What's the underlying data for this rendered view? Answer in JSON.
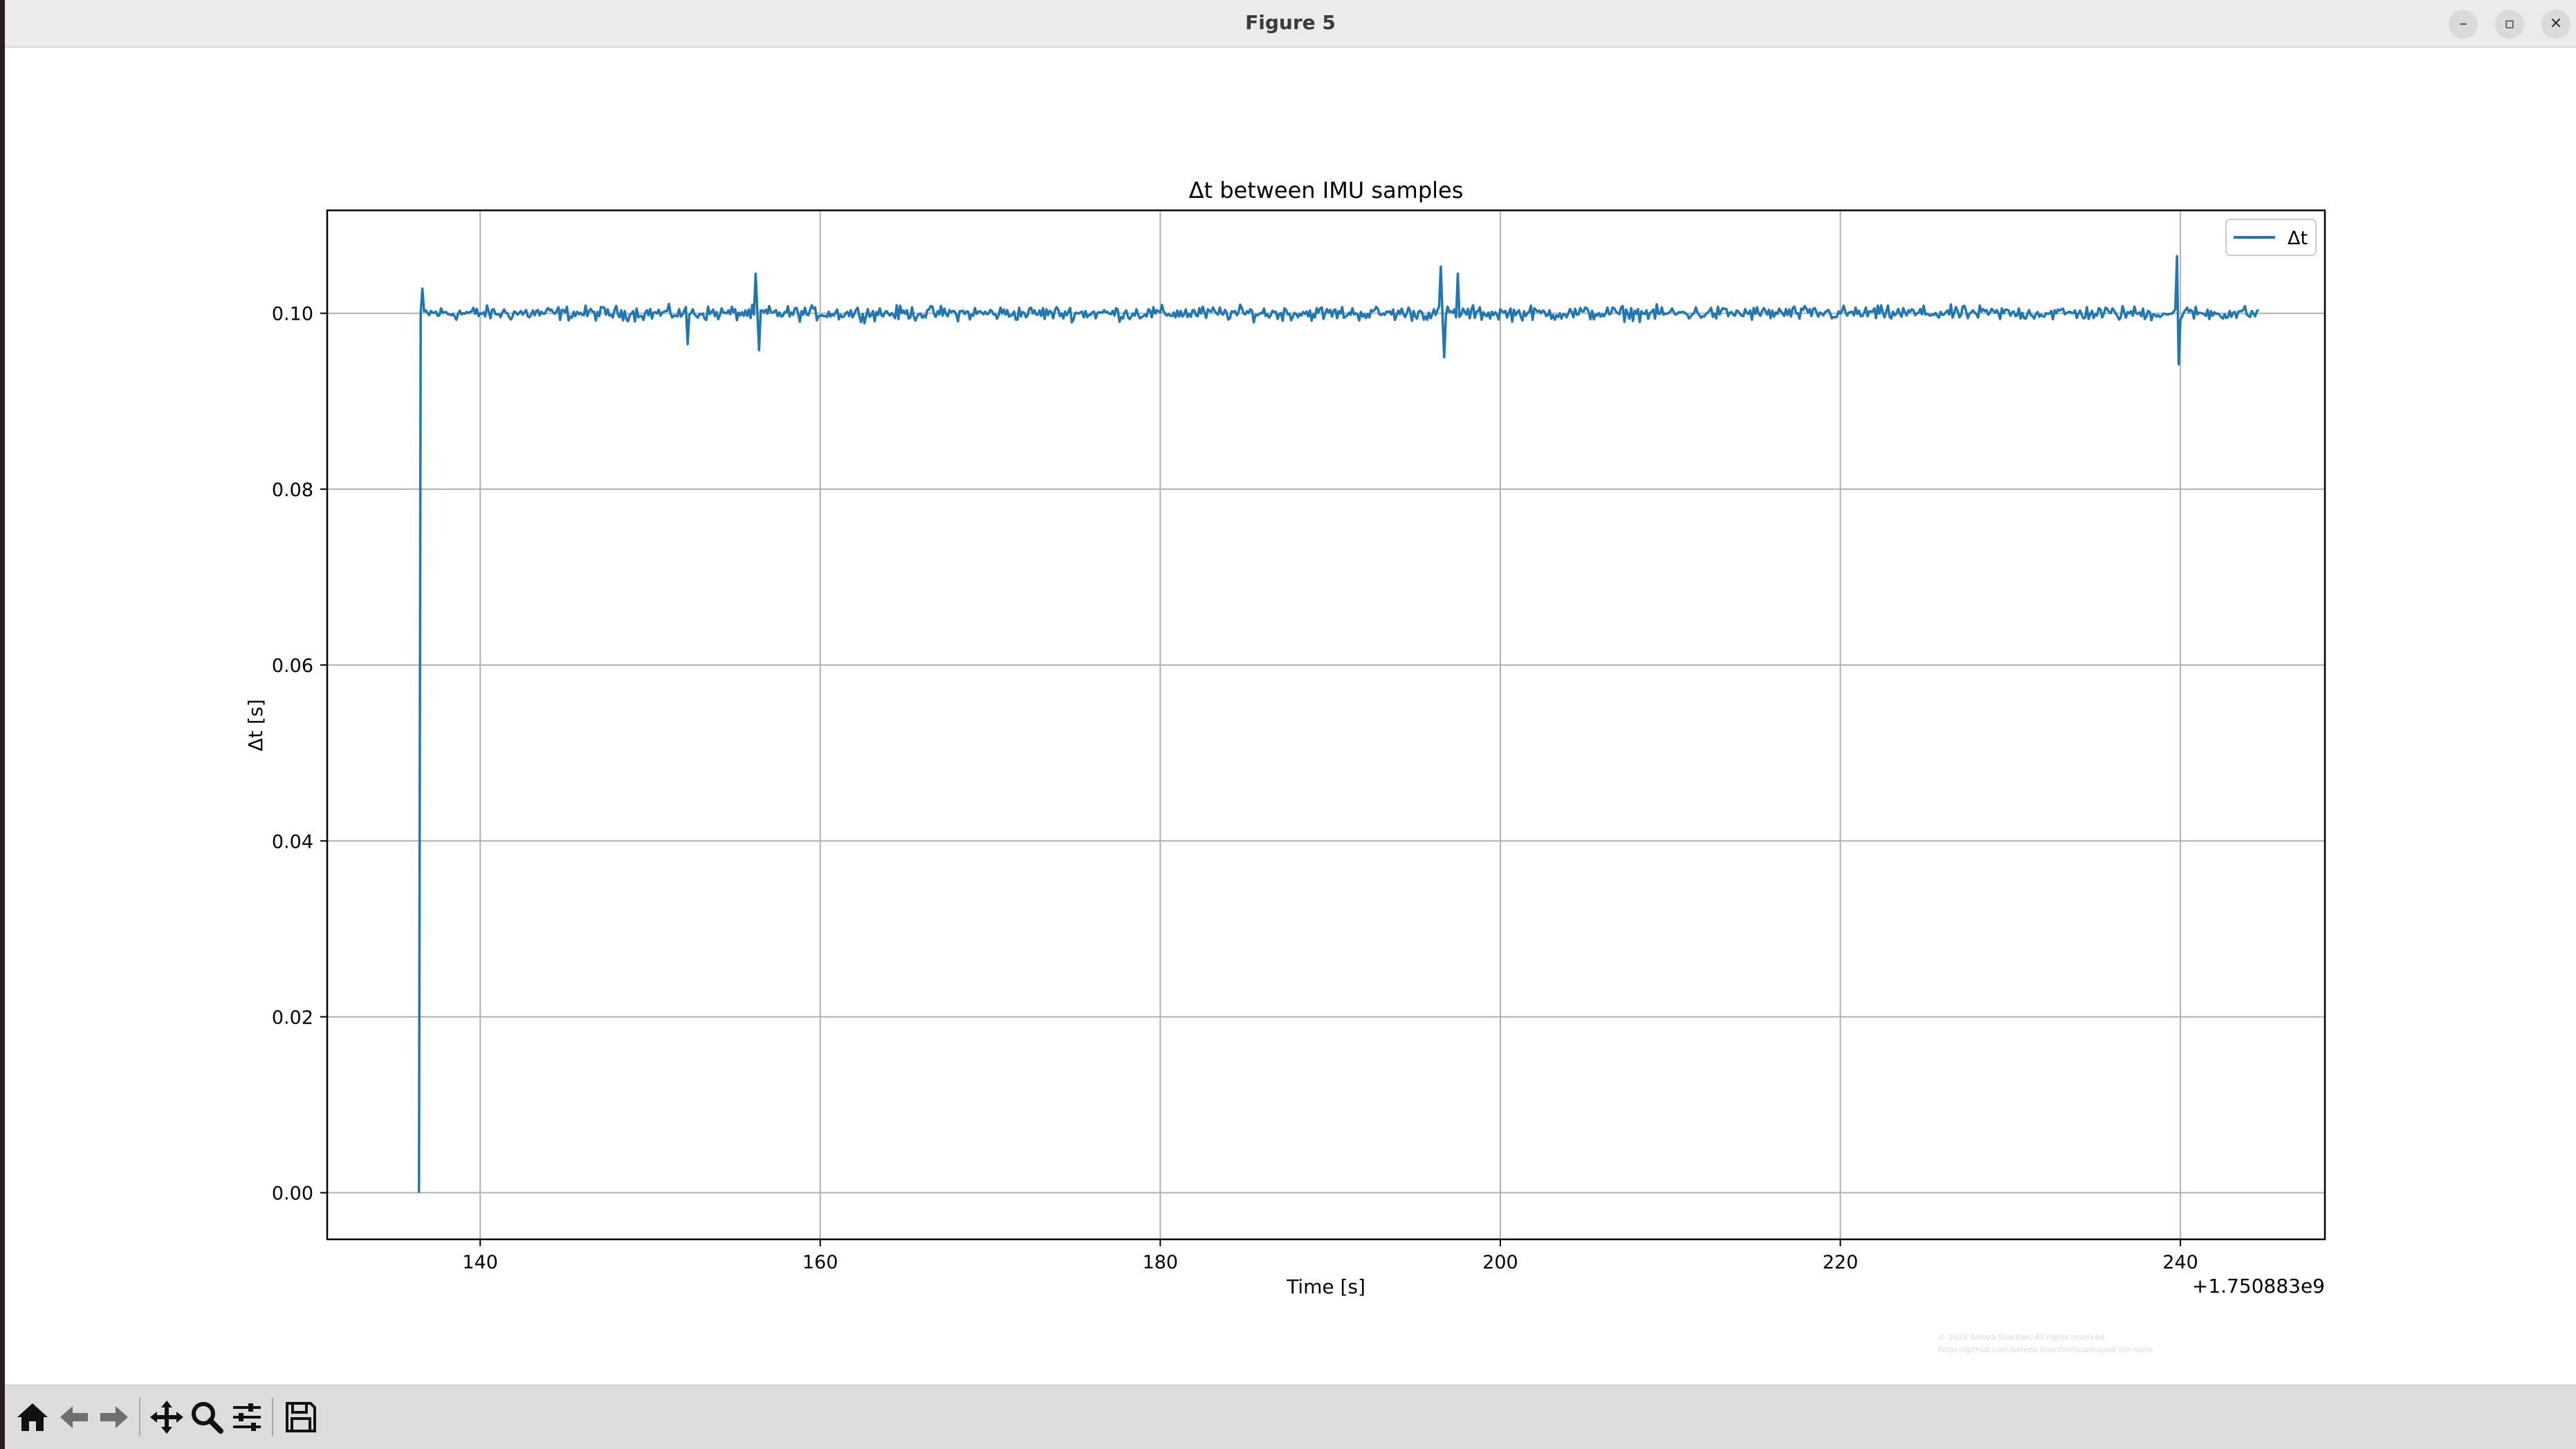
{
  "window": {
    "title": "Figure 5",
    "controls": {
      "minimize": "–",
      "maximize": "▫",
      "close": "✕"
    }
  },
  "toolbar": {
    "buttons": [
      "home-icon",
      "back-arrow-icon",
      "forward-arrow-icon",
      "pan-move-icon",
      "zoom-magnifier-icon",
      "configure-subplots-icon",
      "save-floppy-icon"
    ]
  },
  "watermark": {
    "line1": "© 2025 Alireza Sharifan. All rights reserved.",
    "line2": "https://github.com/Alireza-Sharifan/quadruped-sim-suite"
  },
  "chart_data": {
    "type": "line",
    "title": "Δt between IMU samples",
    "xlabel": "Time [s]",
    "ylabel": "Δt [s]",
    "x_offset_label": "+1.750883e9",
    "xlim": [
      131,
      248.5
    ],
    "ylim": [
      -0.0053,
      0.1117
    ],
    "xticks": [
      140,
      160,
      180,
      200,
      220,
      240
    ],
    "yticks": [
      0.0,
      0.02,
      0.04,
      0.06,
      0.08,
      0.1
    ],
    "ytick_labels": [
      "0.00",
      "0.02",
      "0.04",
      "0.06",
      "0.08",
      "0.10"
    ],
    "grid": true,
    "legend": {
      "position": "top-right",
      "entries": [
        "Δt"
      ]
    },
    "series": [
      {
        "name": "Δt",
        "color": "#1f77b4",
        "x_start": 136.4,
        "x_end": 244.6,
        "sample_interval": 0.1,
        "y_first": 0.0,
        "y_nominal": 0.1,
        "y_noise_amplitude": 0.0012,
        "spikes": [
          {
            "x": 136.6,
            "y": 0.1028
          },
          {
            "x": 152.2,
            "y": 0.0965
          },
          {
            "x": 156.2,
            "y": 0.1045
          },
          {
            "x": 156.4,
            "y": 0.0958
          },
          {
            "x": 196.5,
            "y": 0.1053
          },
          {
            "x": 196.7,
            "y": 0.095
          },
          {
            "x": 197.5,
            "y": 0.1045
          },
          {
            "x": 239.8,
            "y": 0.1065
          },
          {
            "x": 239.9,
            "y": 0.0942
          }
        ]
      }
    ]
  }
}
